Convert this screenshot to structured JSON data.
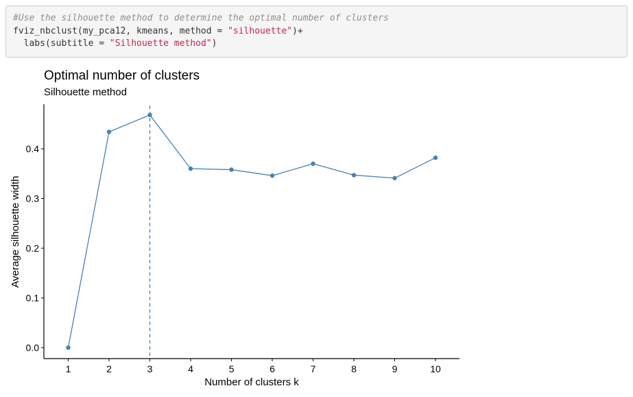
{
  "code": {
    "comment": "#Use the silhouette method to determine the optimal number of clusters",
    "line2_pre": "fviz_nbclust(my_pca12, kmeans, method = ",
    "line2_str": "\"silhouette\"",
    "line2_post": ")+",
    "line3_pre": "  labs(subtitle = ",
    "line3_str": "\"Silhouette method\"",
    "line3_post": ")"
  },
  "colors": {
    "series": "#4682b4",
    "axis": "#000000",
    "code_bg": "#f5f5f5",
    "string": "#c7254e",
    "comment": "#8e908c"
  },
  "chart_data": {
    "type": "line",
    "title": "Optimal number of clusters",
    "subtitle": "Silhouette method",
    "xlabel": "Number of clusters k",
    "ylabel": "Average silhouette width",
    "categories": [
      "1",
      "2",
      "3",
      "4",
      "5",
      "6",
      "7",
      "8",
      "9",
      "10"
    ],
    "values": [
      0.0,
      0.434,
      0.468,
      0.36,
      0.358,
      0.346,
      0.37,
      0.347,
      0.341,
      0.382
    ],
    "yticks": [
      "0.0",
      "0.1",
      "0.2",
      "0.3",
      "0.4"
    ],
    "ylim": [
      0,
      0.47
    ],
    "optimal_k": 3,
    "grid": false,
    "legend": "none"
  }
}
